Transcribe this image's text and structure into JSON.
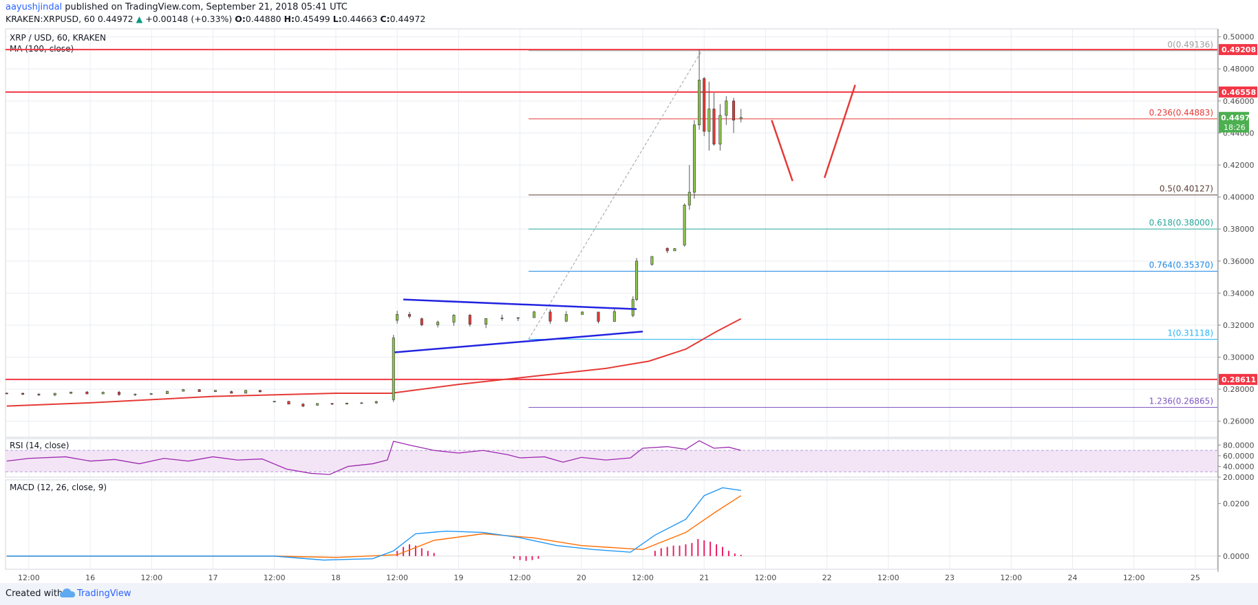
{
  "header": {
    "author": "aayushjindal",
    "published_text": " published on TradingView.com, September 21, 2018 05:41 UTC",
    "symbol": "KRAKEN:XRPUSD, 60",
    "last": "0.44972",
    "change_arrow": "▲",
    "change": "+0.00148 (+0.33%)",
    "o_label": "O:",
    "o": "0.44880",
    "h_label": "H:",
    "h": "0.45499",
    "l_label": "L:",
    "l": "0.44663",
    "c_label": "C:",
    "c": "0.44972"
  },
  "footer": {
    "created_with": "Created with",
    "brand": "TradingView"
  },
  "colors": {
    "up": "#26a69a",
    "down": "#ef5350",
    "candle_up": "#8bc34a",
    "candle_down": "#e53935",
    "support_resistance": "#f23645",
    "ma": "#e53935",
    "triangle": "#2223e0",
    "rsi": "#9c27b0",
    "rsi_band": "#f3e5f5",
    "macd": "#2196f3",
    "signal": "#ff6d00",
    "histogram": "#e91e63",
    "grid": "#e9ecf2"
  },
  "chart_data": {
    "type": "candlestick",
    "title": "XRP / USD, 60, KRAKEN",
    "indicator_label": "MA (100, close)",
    "ylim": [
      0.25,
      0.505
    ],
    "y_ticks": [
      "0.26000",
      "0.28000",
      "0.30000",
      "0.32000",
      "0.34000",
      "0.36000",
      "0.38000",
      "0.40000",
      "0.42000",
      "0.44000",
      "0.46000",
      "0.48000",
      "0.50000"
    ],
    "y_tick_values": [
      0.26,
      0.28,
      0.3,
      0.32,
      0.34,
      0.36,
      0.38,
      0.4,
      0.42,
      0.44,
      0.46,
      0.48,
      0.5
    ],
    "x_ticks": [
      {
        "label": "12:00",
        "t": 0.5
      },
      {
        "label": "16",
        "t": 1.0
      },
      {
        "label": "12:00",
        "t": 1.5
      },
      {
        "label": "17",
        "t": 2.0
      },
      {
        "label": "12:00",
        "t": 2.5
      },
      {
        "label": "18",
        "t": 3.0
      },
      {
        "label": "12:00",
        "t": 3.5
      },
      {
        "label": "19",
        "t": 4.0
      },
      {
        "label": "12:00",
        "t": 4.5
      },
      {
        "label": "20",
        "t": 5.0
      },
      {
        "label": "12:00",
        "t": 5.5
      },
      {
        "label": "21",
        "t": 6.0
      },
      {
        "label": "12:00",
        "t": 6.5
      },
      {
        "label": "22",
        "t": 7.0
      },
      {
        "label": "12:00",
        "t": 7.5
      },
      {
        "label": "23",
        "t": 8.0
      },
      {
        "label": "12:00",
        "t": 8.5
      },
      {
        "label": "24",
        "t": 9.0
      },
      {
        "label": "12:00",
        "t": 9.5
      },
      {
        "label": "25",
        "t": 10.0
      }
    ],
    "x_range_days": [
      0.31,
      10.18
    ],
    "candle_segments": [
      {
        "t0": 0.32,
        "t1": 2.15,
        "v0": 0.2775,
        "v1": 0.2785,
        "noise": 0.0015
      },
      {
        "t0": 2.15,
        "t1": 2.5,
        "v0": 0.2785,
        "v1": 0.278,
        "noise": 0.0012
      },
      {
        "t0": 2.5,
        "t1": 2.85,
        "v0": 0.272,
        "v1": 0.2685,
        "noise": 0.0015
      },
      {
        "t0": 2.85,
        "t1": 3.45,
        "v0": 0.27,
        "v1": 0.2735,
        "noise": 0.0012
      },
      {
        "t0": 3.5,
        "t1": 3.7,
        "v0": 0.323,
        "v1": 0.324,
        "noise": 0.004
      },
      {
        "t0": 3.7,
        "t1": 5.4,
        "v0": 0.324,
        "v1": 0.326,
        "noise": 0.004
      },
      {
        "t0": 5.45,
        "t1": 5.7,
        "v0": 0.358,
        "v1": 0.368,
        "noise": 0.004
      },
      {
        "t0": 5.7,
        "t1": 5.82,
        "v0": 0.368,
        "v1": 0.372,
        "noise": 0.003
      }
    ],
    "candles_explicit": [
      {
        "t": 3.47,
        "o": 0.2735,
        "h": 0.314,
        "l": 0.272,
        "c": 0.312
      },
      {
        "t": 5.42,
        "o": 0.326,
        "h": 0.338,
        "l": 0.325,
        "c": 0.336
      },
      {
        "t": 5.45,
        "o": 0.336,
        "h": 0.362,
        "l": 0.335,
        "c": 0.36
      },
      {
        "t": 5.84,
        "o": 0.37,
        "h": 0.396,
        "l": 0.369,
        "c": 0.395
      },
      {
        "t": 5.88,
        "o": 0.395,
        "h": 0.42,
        "l": 0.392,
        "c": 0.403
      },
      {
        "t": 5.92,
        "o": 0.403,
        "h": 0.448,
        "l": 0.399,
        "c": 0.445
      },
      {
        "t": 5.96,
        "o": 0.445,
        "h": 0.492,
        "l": 0.442,
        "c": 0.473
      },
      {
        "t": 6.0,
        "o": 0.474,
        "h": 0.475,
        "l": 0.438,
        "c": 0.441
      },
      {
        "t": 6.04,
        "o": 0.441,
        "h": 0.472,
        "l": 0.429,
        "c": 0.455
      },
      {
        "t": 6.08,
        "o": 0.455,
        "h": 0.465,
        "l": 0.432,
        "c": 0.433
      },
      {
        "t": 6.13,
        "o": 0.433,
        "h": 0.458,
        "l": 0.429,
        "c": 0.451
      },
      {
        "t": 6.18,
        "o": 0.451,
        "h": 0.463,
        "l": 0.445,
        "c": 0.46
      },
      {
        "t": 6.24,
        "o": 0.46,
        "h": 0.462,
        "l": 0.44,
        "c": 0.448
      },
      {
        "t": 6.3,
        "o": 0.4488,
        "h": 0.455,
        "l": 0.4466,
        "c": 0.4497
      }
    ],
    "ma_100": [
      {
        "t": 0.32,
        "v": 0.2695
      },
      {
        "t": 1.0,
        "v": 0.2715
      },
      {
        "t": 2.0,
        "v": 0.2755
      },
      {
        "t": 3.0,
        "v": 0.2775
      },
      {
        "t": 3.45,
        "v": 0.2775
      },
      {
        "t": 4.0,
        "v": 0.283
      },
      {
        "t": 4.6,
        "v": 0.288
      },
      {
        "t": 5.2,
        "v": 0.293
      },
      {
        "t": 5.55,
        "v": 0.2975
      },
      {
        "t": 5.85,
        "v": 0.305
      },
      {
        "t": 6.1,
        "v": 0.316
      },
      {
        "t": 6.3,
        "v": 0.324
      }
    ],
    "horizontal_levels": [
      {
        "value": 0.49208,
        "label": "0.49208"
      },
      {
        "value": 0.46558,
        "label": "0.46558"
      },
      {
        "value": 0.28611,
        "label": "0.28611"
      }
    ],
    "price_tag": {
      "value": 0.44972,
      "label": "0.44972",
      "countdown": "18:26"
    },
    "fibonacci": {
      "t_start": 4.57,
      "t_low": 4.57,
      "v_low": 0.31118,
      "t_high": 5.98,
      "v_high": 0.49136,
      "levels": [
        {
          "ratio": "0",
          "value": "0.49136",
          "color": "#9e9e9e"
        },
        {
          "ratio": "0.236",
          "value": "0.44883",
          "color": "#e53935"
        },
        {
          "ratio": "0.5",
          "value": "0.40127",
          "color": "#5d4037"
        },
        {
          "ratio": "0.618",
          "value": "0.38000",
          "color": "#26a69a"
        },
        {
          "ratio": "0.764",
          "value": "0.35370",
          "color": "#1e88e5"
        },
        {
          "ratio": "1",
          "value": "0.31118",
          "color": "#29b6f6"
        },
        {
          "ratio": "1.236",
          "value": "0.26865",
          "color": "#7e57c2"
        }
      ]
    },
    "triangle": {
      "upper": [
        {
          "t": 3.55,
          "v": 0.336
        },
        {
          "t": 5.45,
          "v": 0.33
        }
      ],
      "lower": [
        {
          "t": 3.48,
          "v": 0.303
        },
        {
          "t": 5.5,
          "v": 0.316
        }
      ]
    },
    "projection": [
      [
        {
          "t": 6.55,
          "v": 0.448
        },
        {
          "t": 6.72,
          "v": 0.41
        }
      ],
      [
        {
          "t": 6.98,
          "v": 0.412
        },
        {
          "t": 7.23,
          "v": 0.47
        }
      ]
    ],
    "rsi": {
      "label": "RSI (14, close)",
      "ylim": [
        20,
        92
      ],
      "ticks": [
        "80.0000",
        "60.0000",
        "40.0000",
        "20.0000"
      ],
      "tick_values": [
        80,
        60,
        40,
        20
      ],
      "upper_band": 70,
      "lower_band": 30,
      "points": [
        {
          "t": 0.32,
          "v": 50
        },
        {
          "t": 0.5,
          "v": 55
        },
        {
          "t": 0.8,
          "v": 58
        },
        {
          "t": 1.0,
          "v": 50
        },
        {
          "t": 1.2,
          "v": 53
        },
        {
          "t": 1.4,
          "v": 45
        },
        {
          "t": 1.6,
          "v": 55
        },
        {
          "t": 1.8,
          "v": 50
        },
        {
          "t": 2.0,
          "v": 58
        },
        {
          "t": 2.2,
          "v": 52
        },
        {
          "t": 2.4,
          "v": 54
        },
        {
          "t": 2.6,
          "v": 35
        },
        {
          "t": 2.8,
          "v": 27
        },
        {
          "t": 2.95,
          "v": 25
        },
        {
          "t": 3.1,
          "v": 40
        },
        {
          "t": 3.3,
          "v": 45
        },
        {
          "t": 3.42,
          "v": 52
        },
        {
          "t": 3.47,
          "v": 87
        },
        {
          "t": 3.6,
          "v": 80
        },
        {
          "t": 3.8,
          "v": 70
        },
        {
          "t": 4.0,
          "v": 65
        },
        {
          "t": 4.2,
          "v": 70
        },
        {
          "t": 4.4,
          "v": 62
        },
        {
          "t": 4.5,
          "v": 56
        },
        {
          "t": 4.7,
          "v": 58
        },
        {
          "t": 4.85,
          "v": 48
        },
        {
          "t": 5.0,
          "v": 57
        },
        {
          "t": 5.2,
          "v": 52
        },
        {
          "t": 5.4,
          "v": 56
        },
        {
          "t": 5.5,
          "v": 74
        },
        {
          "t": 5.7,
          "v": 77
        },
        {
          "t": 5.85,
          "v": 72
        },
        {
          "t": 5.96,
          "v": 88
        },
        {
          "t": 6.08,
          "v": 74
        },
        {
          "t": 6.2,
          "v": 76
        },
        {
          "t": 6.3,
          "v": 70
        }
      ]
    },
    "macd": {
      "label": "MACD (12, 26, close, 9)",
      "ylim": [
        -0.005,
        0.029
      ],
      "ticks": [
        "0.0200",
        "0.0000"
      ],
      "tick_values": [
        0.02,
        0.0
      ],
      "macd_points": [
        {
          "t": 0.32,
          "v": 0.0
        },
        {
          "t": 2.5,
          "v": 0.0
        },
        {
          "t": 2.9,
          "v": -0.0015
        },
        {
          "t": 3.3,
          "v": -0.001
        },
        {
          "t": 3.47,
          "v": 0.002
        },
        {
          "t": 3.65,
          "v": 0.0085
        },
        {
          "t": 3.9,
          "v": 0.0095
        },
        {
          "t": 4.2,
          "v": 0.009
        },
        {
          "t": 4.5,
          "v": 0.007
        },
        {
          "t": 4.8,
          "v": 0.004
        },
        {
          "t": 5.1,
          "v": 0.0025
        },
        {
          "t": 5.4,
          "v": 0.0015
        },
        {
          "t": 5.6,
          "v": 0.008
        },
        {
          "t": 5.85,
          "v": 0.014
        },
        {
          "t": 6.0,
          "v": 0.023
        },
        {
          "t": 6.15,
          "v": 0.026
        },
        {
          "t": 6.3,
          "v": 0.025
        }
      ],
      "signal_points": [
        {
          "t": 0.32,
          "v": 0.0
        },
        {
          "t": 2.5,
          "v": 0.0
        },
        {
          "t": 3.0,
          "v": -0.0005
        },
        {
          "t": 3.5,
          "v": 0.0005
        },
        {
          "t": 3.8,
          "v": 0.006
        },
        {
          "t": 4.2,
          "v": 0.0085
        },
        {
          "t": 4.6,
          "v": 0.007
        },
        {
          "t": 5.0,
          "v": 0.004
        },
        {
          "t": 5.5,
          "v": 0.0025
        },
        {
          "t": 5.85,
          "v": 0.009
        },
        {
          "t": 6.1,
          "v": 0.017
        },
        {
          "t": 6.3,
          "v": 0.023
        }
      ],
      "histogram": [
        {
          "t": 3.5,
          "v": 0.002
        },
        {
          "t": 3.55,
          "v": 0.0035
        },
        {
          "t": 3.6,
          "v": 0.0045
        },
        {
          "t": 3.65,
          "v": 0.004
        },
        {
          "t": 3.7,
          "v": 0.003
        },
        {
          "t": 3.75,
          "v": 0.002
        },
        {
          "t": 3.8,
          "v": 0.0012
        },
        {
          "t": 4.45,
          "v": -0.001
        },
        {
          "t": 4.5,
          "v": -0.0015
        },
        {
          "t": 4.55,
          "v": -0.0018
        },
        {
          "t": 4.6,
          "v": -0.0015
        },
        {
          "t": 4.65,
          "v": -0.001
        },
        {
          "t": 5.6,
          "v": 0.002
        },
        {
          "t": 5.65,
          "v": 0.003
        },
        {
          "t": 5.7,
          "v": 0.0035
        },
        {
          "t": 5.75,
          "v": 0.004
        },
        {
          "t": 5.8,
          "v": 0.004
        },
        {
          "t": 5.85,
          "v": 0.0045
        },
        {
          "t": 5.9,
          "v": 0.005
        },
        {
          "t": 5.95,
          "v": 0.0065
        },
        {
          "t": 6.0,
          "v": 0.006
        },
        {
          "t": 6.05,
          "v": 0.0055
        },
        {
          "t": 6.1,
          "v": 0.0045
        },
        {
          "t": 6.15,
          "v": 0.0035
        },
        {
          "t": 6.2,
          "v": 0.002
        },
        {
          "t": 6.25,
          "v": 0.001
        },
        {
          "t": 6.3,
          "v": 0.0005
        }
      ]
    }
  }
}
